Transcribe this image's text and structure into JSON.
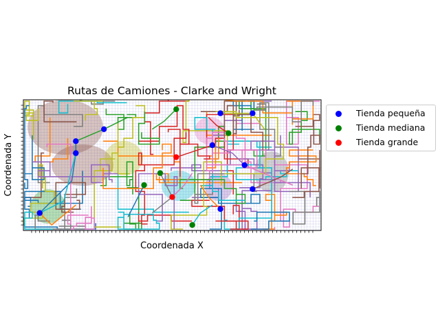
{
  "chart_data": {
    "type": "scatter",
    "title": "Rutas de Camiones - Clarke and Wright",
    "xlabel": "Coordenada X",
    "ylabel": "Coordenada Y",
    "xlim": [
      0,
      70
    ],
    "ylim": [
      0,
      30
    ],
    "grid": true,
    "legend_position": "outside-right",
    "series": [
      {
        "name": "Tienda pequeña",
        "color": "#0000ff",
        "points": [
          [
            2,
            3
          ],
          [
            11,
            21
          ],
          [
            11,
            18
          ],
          [
            18,
            24
          ],
          [
            47,
            28
          ],
          [
            55,
            28
          ],
          [
            45,
            20
          ],
          [
            53,
            15
          ],
          [
            55,
            9
          ],
          [
            47,
            4
          ]
        ]
      },
      {
        "name": "Tienda mediana",
        "color": "#008000",
        "points": [
          [
            36,
            29
          ],
          [
            49,
            23
          ],
          [
            32,
            13
          ],
          [
            28,
            10
          ],
          [
            40,
            0
          ]
        ]
      },
      {
        "name": "Tienda grande",
        "color": "#ff0000",
        "points": [
          [
            36,
            17
          ],
          [
            35,
            7
          ]
        ]
      }
    ],
    "routes": [
      {
        "color": "#1f77b4",
        "points": [
          [
            2,
            3
          ],
          [
            10,
            11
          ],
          [
            11,
            18
          ],
          [
            11,
            21
          ]
        ]
      },
      {
        "color": "#ff7f0e",
        "points": [
          [
            2,
            3
          ],
          [
            5,
            0
          ],
          [
            11,
            5
          ]
        ]
      },
      {
        "color": "#17becf",
        "points": [
          [
            2,
            3
          ],
          [
            8,
            6
          ],
          [
            11,
            18
          ]
        ]
      },
      {
        "color": "#2ca02c",
        "points": [
          [
            11,
            21
          ],
          [
            18,
            24
          ],
          [
            24,
            27
          ]
        ]
      },
      {
        "color": "#d62728",
        "points": [
          [
            36,
            17
          ],
          [
            42,
            19
          ],
          [
            45,
            20
          ]
        ]
      },
      {
        "color": "#9467bd",
        "points": [
          [
            45,
            20
          ],
          [
            50,
            18
          ],
          [
            53,
            15
          ]
        ]
      },
      {
        "color": "#e377c2",
        "points": [
          [
            53,
            15
          ],
          [
            60,
            12
          ],
          [
            65,
            10
          ]
        ]
      },
      {
        "color": "#8c564b",
        "points": [
          [
            55,
            9
          ],
          [
            62,
            12
          ],
          [
            65,
            14
          ]
        ]
      },
      {
        "color": "#bcbd22",
        "points": [
          [
            47,
            28
          ],
          [
            55,
            28
          ],
          [
            58,
            24
          ]
        ]
      },
      {
        "color": "#7f7f7f",
        "points": [
          [
            32,
            13
          ],
          [
            35,
            7
          ],
          [
            30,
            3
          ]
        ]
      },
      {
        "color": "#1f77b4",
        "points": [
          [
            28,
            10
          ],
          [
            26,
            6
          ],
          [
            24,
            2
          ]
        ]
      },
      {
        "color": "#d62728",
        "points": [
          [
            49,
            23
          ],
          [
            46,
            25
          ],
          [
            44,
            27
          ]
        ]
      },
      {
        "color": "#2ca02c",
        "points": [
          [
            36,
            29
          ],
          [
            33,
            26
          ],
          [
            30,
            24
          ]
        ]
      },
      {
        "color": "#ff7f0e",
        "points": [
          [
            47,
            4
          ],
          [
            44,
            7
          ],
          [
            42,
            10
          ]
        ]
      },
      {
        "color": "#e377c2",
        "points": [
          [
            35,
            7
          ],
          [
            38,
            10
          ],
          [
            40,
            13
          ]
        ]
      },
      {
        "color": "#17becf",
        "points": [
          [
            40,
            0
          ],
          [
            42,
            3
          ],
          [
            45,
            5
          ]
        ]
      }
    ],
    "colors": [
      "#1f77b4",
      "#ff7f0e",
      "#2ca02c",
      "#d62728",
      "#9467bd",
      "#8c564b",
      "#e377c2",
      "#7f7f7f",
      "#bcbd22",
      "#17becf"
    ]
  }
}
